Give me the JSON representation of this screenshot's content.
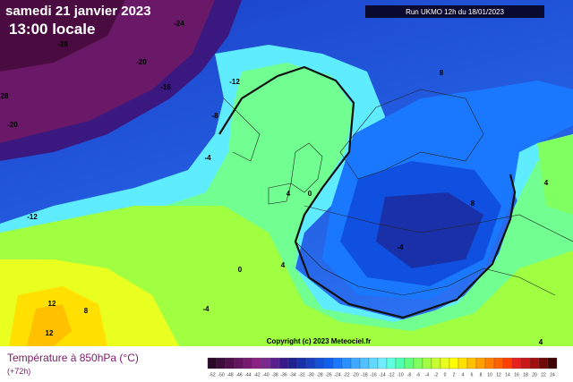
{
  "header": {
    "date": "samedi 21 janvier 2023",
    "time": "13:00 locale",
    "run": "Run UKMO 12h du 18/01/2023"
  },
  "copyright": "Copyright (c) 2023 Meteociel.fr",
  "legend": {
    "title": "Température à 850hPa (°C)",
    "lead": "(+72h)",
    "scale": [
      -52,
      -50,
      -48,
      -46,
      -44,
      -42,
      -40,
      -38,
      -36,
      -34,
      -32,
      -30,
      -28,
      -26,
      -24,
      -22,
      -20,
      -18,
      -16,
      -14,
      -12,
      -10,
      -8,
      -6,
      -4,
      -2,
      0,
      2,
      4,
      6,
      8,
      10,
      12,
      14,
      16,
      18,
      20,
      22,
      24
    ],
    "colors": [
      "#2a0828",
      "#3d0c3a",
      "#51104d",
      "#641560",
      "#781a72",
      "#8c2085",
      "#7a2a8c",
      "#5a2090",
      "#3a1a8a",
      "#202090",
      "#1a30a8",
      "#1840c0",
      "#1550d8",
      "#1060ee",
      "#1a78ff",
      "#2a90ff",
      "#40a8ff",
      "#50c0ff",
      "#60d8ff",
      "#70ecff",
      "#60ffe0",
      "#50ffb0",
      "#60ff80",
      "#80ff60",
      "#a0ff40",
      "#c8ff30",
      "#e8ff20",
      "#ffff00",
      "#ffe000",
      "#ffc000",
      "#ffa000",
      "#ff8000",
      "#ff6000",
      "#ff4000",
      "#e82020",
      "#c81818",
      "#a01010",
      "#700808",
      "#400404"
    ]
  },
  "contour_labels": [
    "-24",
    "-28",
    "-20",
    "-16",
    "-12",
    "28",
    "-20",
    "-8",
    "8",
    "-4",
    "4",
    "0",
    "4",
    "8",
    "-12",
    "-4",
    "0",
    "4",
    "-4",
    "12",
    "8",
    "12",
    "4"
  ]
}
